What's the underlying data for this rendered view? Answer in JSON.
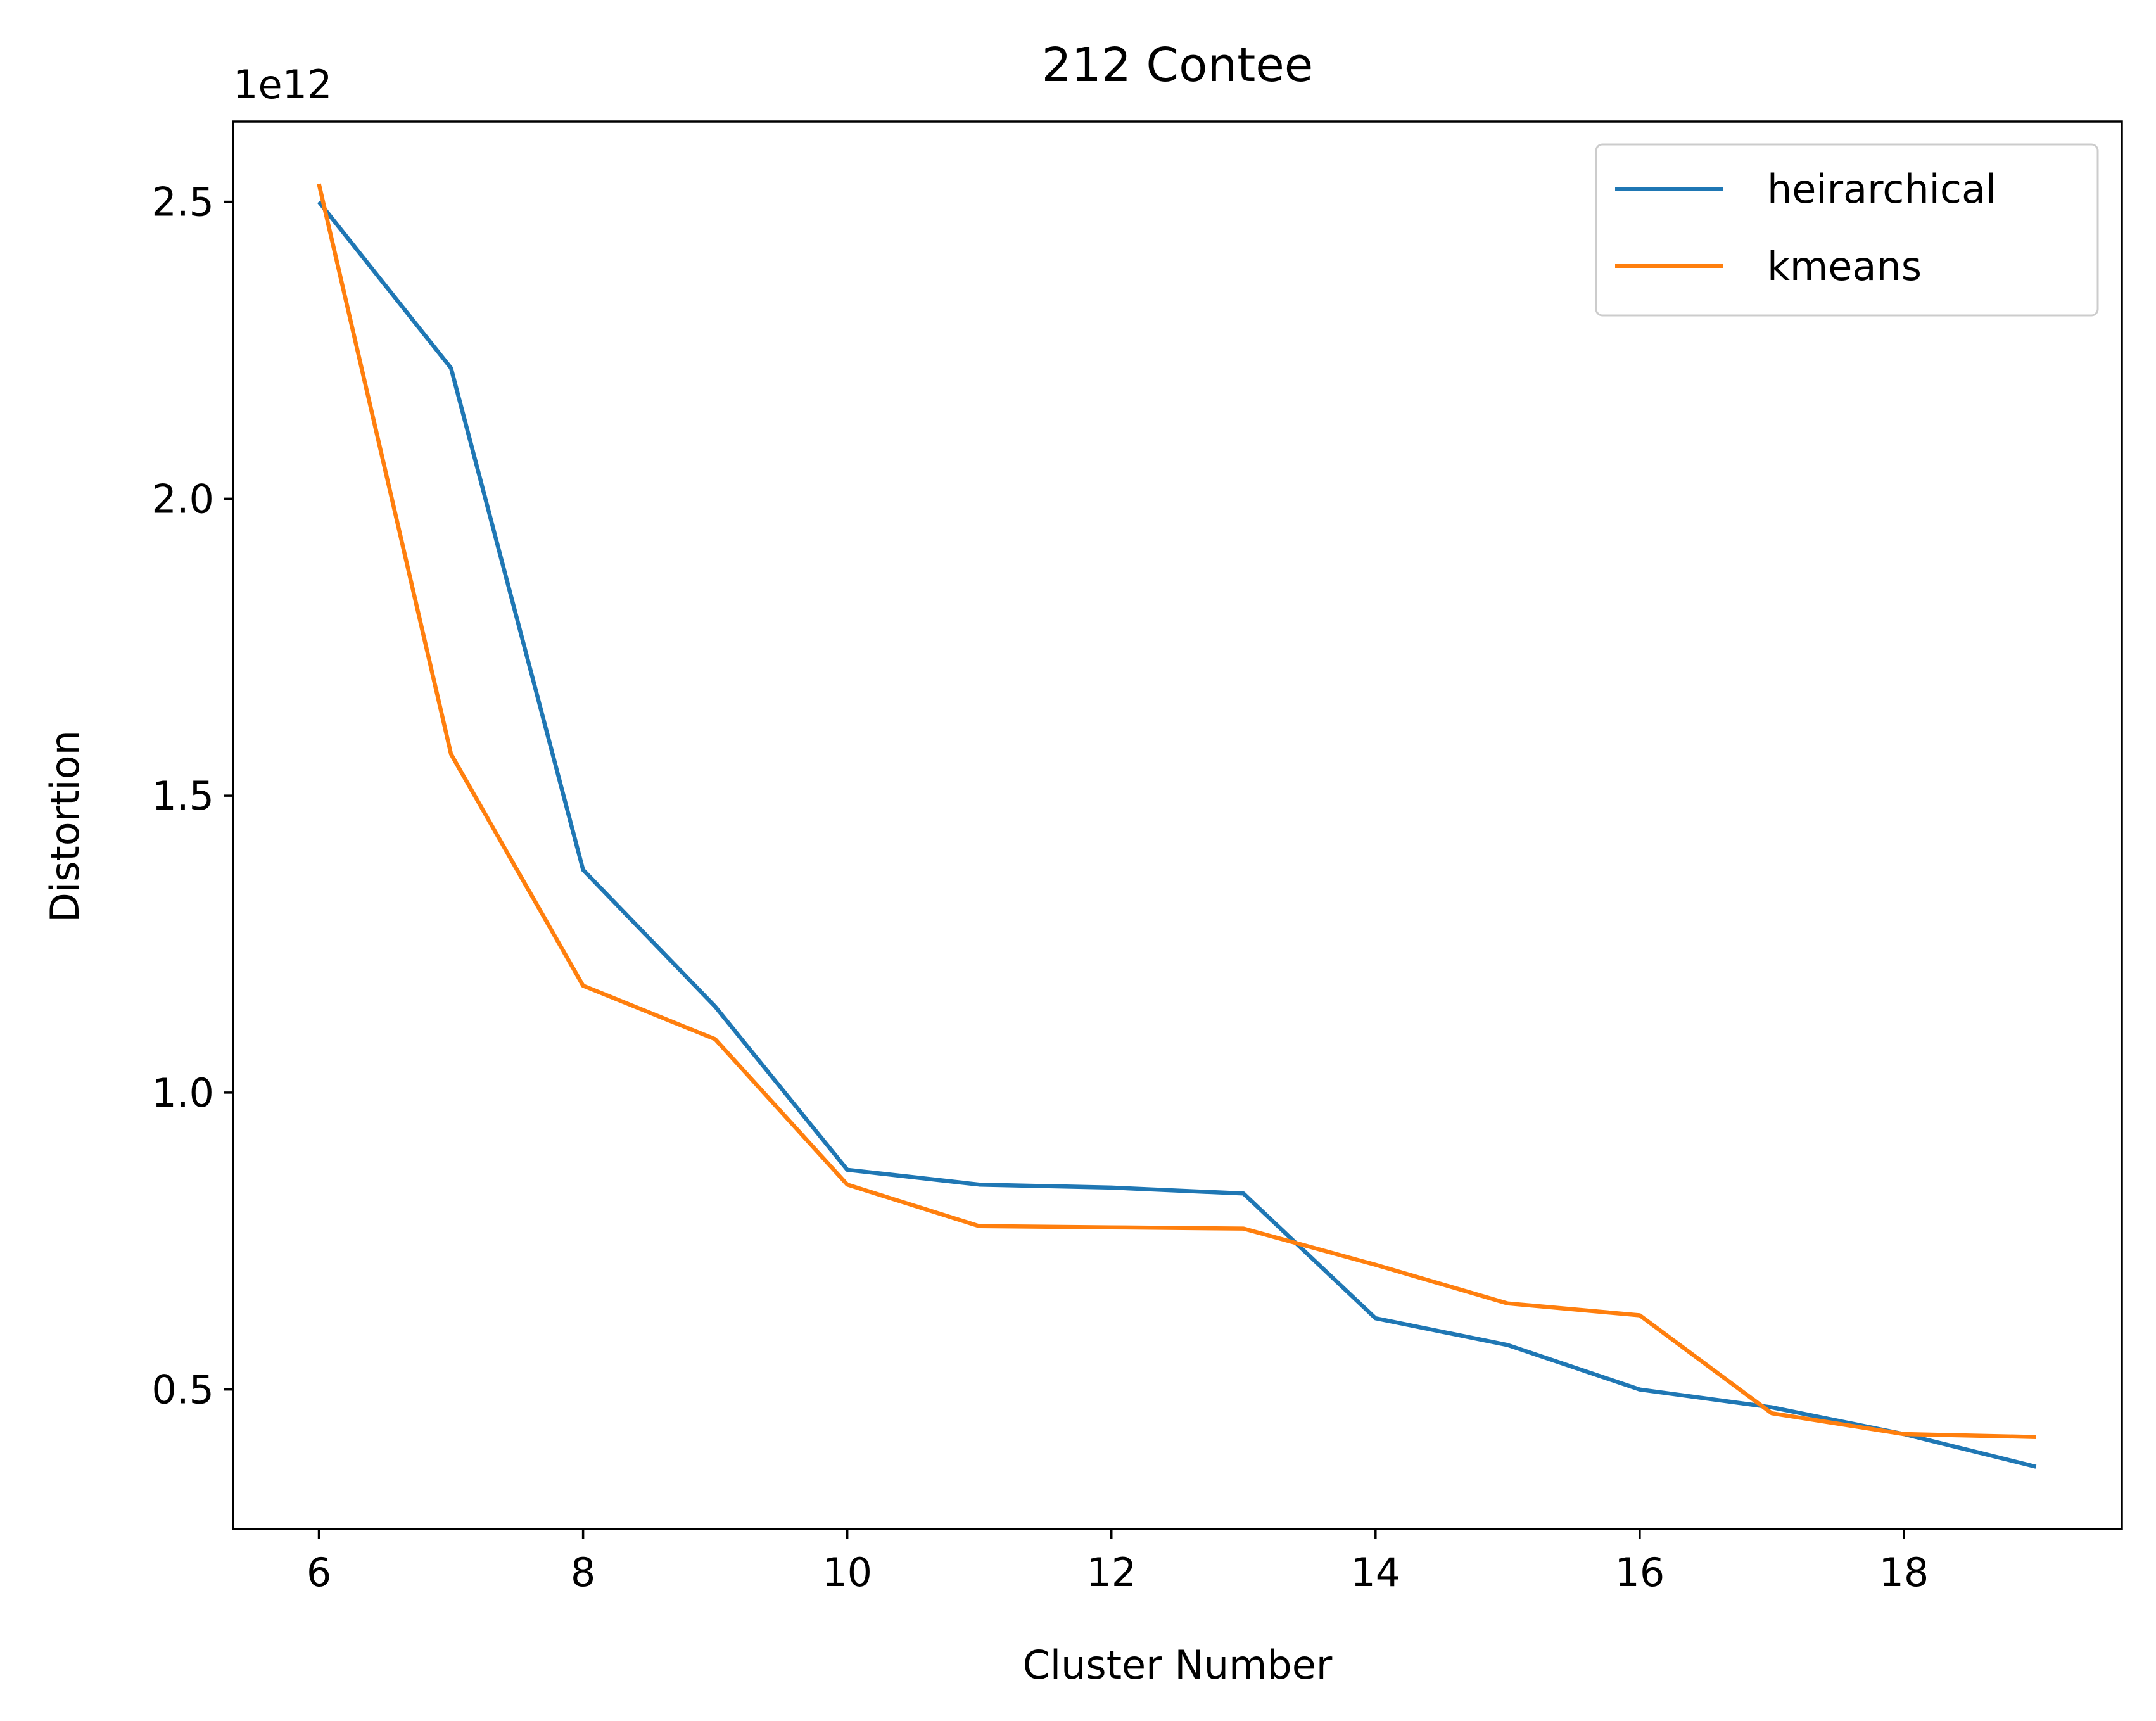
{
  "chart_data": {
    "type": "line",
    "title": "212 Contee",
    "xlabel": "Cluster Number",
    "ylabel": "Distortion",
    "y_offset_label": "1e12",
    "y_scale": 1000000000000.0,
    "xlim": [
      5.35,
      19.65
    ],
    "ylim": [
      0.265,
      2.635
    ],
    "x_ticks": [
      6,
      8,
      10,
      12,
      14,
      16,
      18
    ],
    "x_tick_labels": [
      "6",
      "8",
      "10",
      "12",
      "14",
      "16",
      "18"
    ],
    "y_ticks": [
      0.5,
      1.0,
      1.5,
      2.0,
      2.5
    ],
    "y_tick_labels": [
      "0.5",
      "1.0",
      "1.5",
      "2.0",
      "2.5"
    ],
    "grid": false,
    "legend_position": "top-right",
    "x": [
      6,
      7,
      8,
      9,
      10,
      11,
      12,
      13,
      14,
      15,
      16,
      17,
      18,
      19
    ],
    "series": [
      {
        "name": "heirarchical",
        "color": "#1f77b4",
        "values": [
          2.5,
          2.22,
          1.375,
          1.145,
          0.87,
          0.845,
          0.84,
          0.83,
          0.62,
          0.575,
          0.5,
          0.47,
          0.425,
          0.37
        ]
      },
      {
        "name": "kmeans",
        "color": "#ff7f0e",
        "values": [
          2.53,
          1.57,
          1.18,
          1.09,
          0.845,
          0.775,
          0.773,
          0.771,
          0.71,
          0.645,
          0.625,
          0.46,
          0.425,
          0.42
        ]
      }
    ]
  }
}
